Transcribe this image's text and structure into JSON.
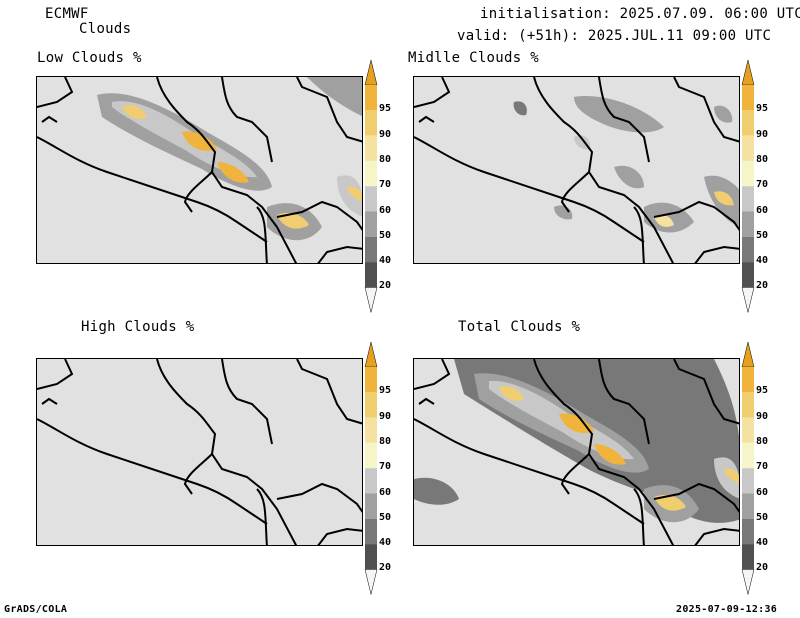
{
  "header": {
    "model": "ECMWF",
    "product": "Clouds",
    "init": "initialisation: 2025.07.09. 06:00 UTC",
    "valid": "valid: (+51h): 2025.JUL.11 09:00 UTC"
  },
  "panels": {
    "low": "Low Clouds %",
    "middle": "Midlle Clouds %",
    "high": "High Clouds %",
    "total": "Total Clouds %"
  },
  "colorbar": {
    "levels": [
      "95",
      "90",
      "80",
      "70",
      "60",
      "50",
      "40",
      "20"
    ],
    "colors": [
      "#f0b43c",
      "#f0cd6e",
      "#f5e1a0",
      "#f5f5c8",
      "#c8c8c8",
      "#a0a0a0",
      "#787878",
      "#505050"
    ],
    "arrow_top_color": "#e6a020",
    "arrow_bottom_color": "#f5f5f5"
  },
  "footer": {
    "left": "GrADS/COLA",
    "right": "2025-07-09-12:36"
  }
}
